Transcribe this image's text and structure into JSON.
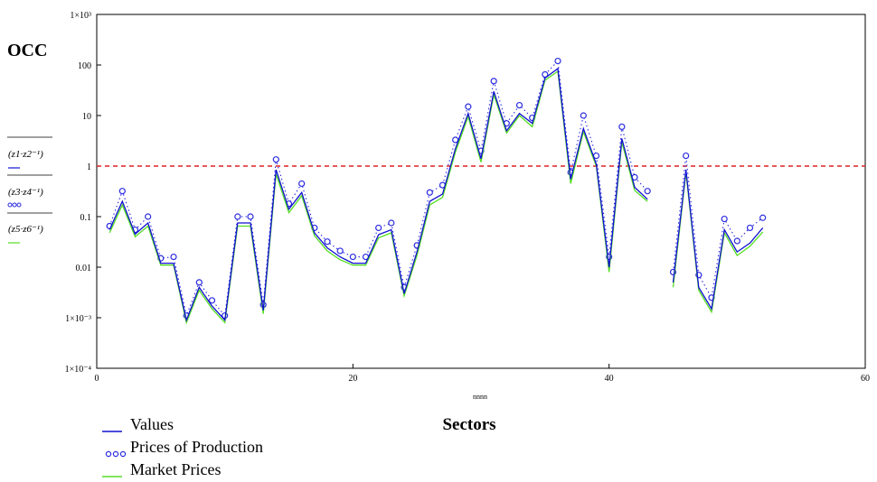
{
  "chart_data": {
    "type": "line",
    "title": "",
    "ylabel": "OCC",
    "xlabel": "Sectors",
    "x_axis_var": "nnnn",
    "y_scale": "log",
    "xlim": [
      0,
      60
    ],
    "ylim": [
      0.0001,
      1000
    ],
    "x_ticks": [
      0,
      20,
      40,
      60
    ],
    "x_tick_labels": [
      "0",
      "20",
      "40",
      "60"
    ],
    "y_ticks": [
      0.0001,
      0.001,
      0.01,
      0.1,
      1,
      10,
      100,
      1000
    ],
    "y_tick_labels": [
      "1×10⁻⁴",
      "1×10⁻³",
      "0.01",
      "0.1",
      "1",
      "10",
      "100",
      "1×10³"
    ],
    "reference_line": {
      "y": 1,
      "color": "#e02020",
      "style": "dashed"
    },
    "grid": false,
    "legend_position": "bottom-left",
    "y_series_expressions": [
      "(z1·z2⁻¹)",
      "(z3·z4⁻¹)",
      "(z5·z6⁻¹)"
    ],
    "x": [
      1,
      2,
      3,
      4,
      5,
      6,
      7,
      8,
      9,
      10,
      11,
      12,
      13,
      14,
      15,
      16,
      17,
      18,
      19,
      20,
      21,
      22,
      23,
      24,
      25,
      26,
      27,
      28,
      29,
      30,
      31,
      32,
      33,
      34,
      35,
      36,
      37,
      38,
      39,
      40,
      41,
      42,
      43,
      44,
      45,
      46,
      47,
      48,
      49,
      50,
      51,
      52
    ],
    "series": [
      {
        "name": "Values",
        "style": "solid",
        "color": "#1010d0",
        "values": [
          0.055,
          0.2,
          0.045,
          0.075,
          0.012,
          0.012,
          0.0009,
          0.004,
          0.0017,
          0.0009,
          0.075,
          0.075,
          0.0014,
          0.85,
          0.14,
          0.3,
          0.048,
          0.024,
          0.016,
          0.012,
          0.012,
          0.044,
          0.055,
          0.003,
          0.02,
          0.2,
          0.28,
          2.2,
          11,
          1.4,
          30,
          5,
          11,
          7,
          55,
          85,
          0.55,
          5.5,
          1.1,
          0.01,
          3.5,
          0.38,
          0.22,
          null,
          0.005,
          0.85,
          0.004,
          0.0015,
          0.055,
          0.02,
          0.03,
          0.06
        ]
      },
      {
        "name": "Prices of Production",
        "style": "markers-dotted",
        "color": "#2b2be0",
        "values": [
          0.065,
          0.32,
          0.055,
          0.1,
          0.015,
          0.016,
          0.0011,
          0.005,
          0.0022,
          0.0011,
          0.1,
          0.1,
          0.0018,
          1.35,
          0.18,
          0.45,
          0.06,
          0.032,
          0.021,
          0.016,
          0.016,
          0.06,
          0.075,
          0.004,
          0.027,
          0.3,
          0.42,
          3.3,
          15,
          2,
          48,
          7,
          16,
          9,
          65,
          120,
          0.75,
          10,
          1.6,
          0.016,
          6,
          0.6,
          0.32,
          null,
          0.008,
          1.6,
          0.007,
          0.0025,
          0.09,
          0.033,
          0.06,
          0.095
        ]
      },
      {
        "name": "Market Prices",
        "style": "solid",
        "color": "#55dd22",
        "values": [
          0.048,
          0.17,
          0.04,
          0.065,
          0.011,
          0.011,
          0.0008,
          0.0035,
          0.0015,
          0.0008,
          0.065,
          0.065,
          0.0012,
          0.7,
          0.12,
          0.26,
          0.042,
          0.021,
          0.014,
          0.011,
          0.011,
          0.038,
          0.048,
          0.0027,
          0.017,
          0.17,
          0.24,
          1.9,
          9.5,
          1.2,
          26,
          4.5,
          10,
          6,
          50,
          75,
          0.45,
          4.8,
          1,
          0.008,
          3,
          0.33,
          0.2,
          null,
          0.004,
          0.75,
          0.0035,
          0.0013,
          0.048,
          0.017,
          0.026,
          0.05
        ]
      }
    ]
  }
}
